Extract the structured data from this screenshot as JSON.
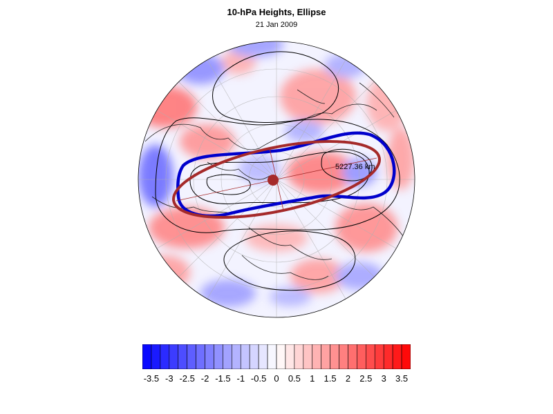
{
  "title": "10-hPa Heights, Ellipse",
  "subtitle": "21 Jan 2009",
  "ellipse_label": "5227.36 km",
  "colors": {
    "ellipse": "#a52a2a",
    "contour_highlight": "#0000cc",
    "contours": "#000000",
    "positive": "#ff0000",
    "negative": "#0000ff"
  },
  "colorbar": {
    "min": -3.75,
    "max": 3.75,
    "step": 0.25,
    "labels": [
      "-3.5",
      "-3",
      "-2.5",
      "-2",
      "-1.5",
      "-1",
      "-0.5",
      "0",
      "0.5",
      "1",
      "1.5",
      "2",
      "2.5",
      "3",
      "3.5"
    ]
  }
}
